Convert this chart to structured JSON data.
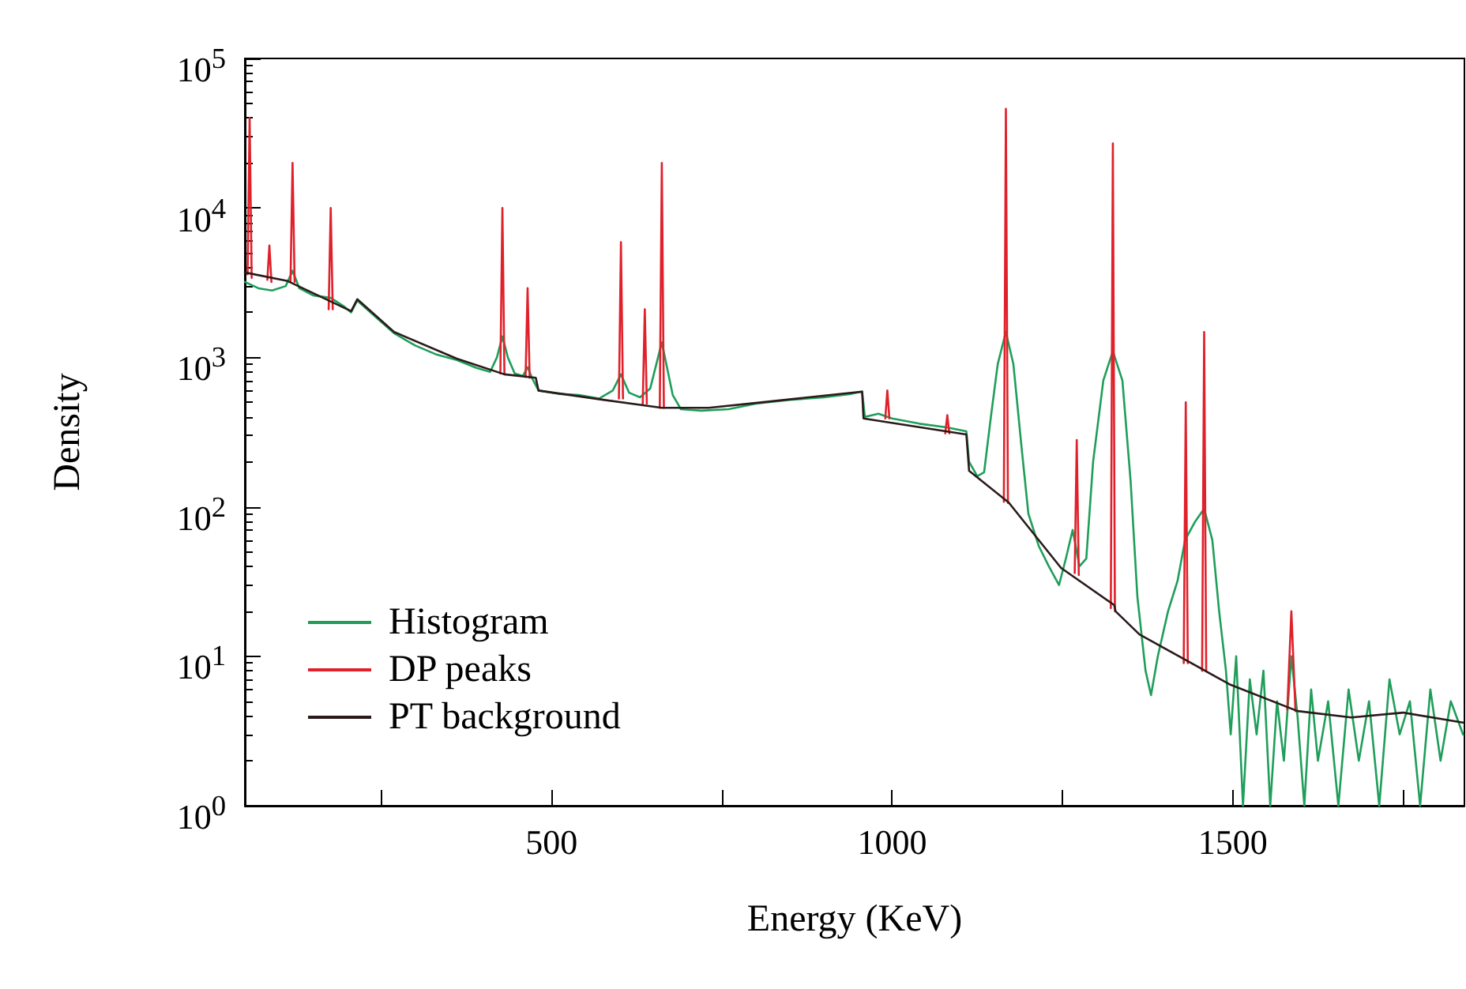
{
  "chart_data": {
    "type": "line",
    "xlabel": "Energy (KeV)",
    "ylabel": "Density",
    "log": "y",
    "xlim": [
      50,
      1840
    ],
    "ylim": [
      1,
      100000
    ],
    "xticks": [
      {
        "value": 250,
        "label": null
      },
      500,
      {
        "value": 750,
        "label": null
      },
      1000,
      {
        "value": 1250,
        "label": null
      },
      1500,
      {
        "value": 1750,
        "label": null
      }
    ],
    "yticks": [
      {
        "value": 1,
        "label": "10$^{0}$"
      },
      {
        "value": 10,
        "label": "10$^{1}$"
      },
      {
        "value": 100,
        "label": "10$^{2}$"
      },
      {
        "value": 1000,
        "label": "10$^{3}$"
      },
      {
        "value": 10000,
        "label": "10$^{4}$"
      },
      {
        "value": 100000,
        "label": "10$^{5}$"
      }
    ],
    "grid": false,
    "legend": "bottom left",
    "marker": "none",
    "line_style": "solid",
    "series": [
      {
        "name": "Histogram",
        "color": "#1f9e5a",
        "x": [
          50,
          70,
          90,
          110,
          120,
          130,
          150,
          176,
          195,
          206,
          215,
          240,
          269,
          300,
          330,
          361,
          390,
          410,
          420,
          428,
          436,
          446,
          458,
          465,
          472,
          481,
          510,
          540,
          570,
          590,
          602,
          614,
          630,
          645,
          662,
          678,
          690,
          720,
          760,
          800,
          850,
          900,
          940,
          956,
          960,
          980,
          1000,
          1040,
          1080,
          1109,
          1113,
          1125,
          1135,
          1145,
          1155,
          1167,
          1178,
          1190,
          1200,
          1215,
          1230,
          1245,
          1255,
          1265,
          1275,
          1285,
          1295,
          1310,
          1324,
          1338,
          1350,
          1360,
          1372,
          1380,
          1390,
          1405,
          1419,
          1430,
          1445,
          1458,
          1470,
          1480,
          1490,
          1497,
          1505,
          1515,
          1525,
          1535,
          1545,
          1555,
          1565,
          1575,
          1586,
          1595,
          1605,
          1615,
          1625,
          1640,
          1655,
          1670,
          1685,
          1700,
          1715,
          1730,
          1745,
          1760,
          1775,
          1790,
          1805,
          1820,
          1838
        ],
        "values": [
          3200,
          2900,
          2800,
          3000,
          3800,
          2900,
          2600,
          2500,
          2200,
          2000,
          2400,
          1900,
          1450,
          1200,
          1050,
          960,
          850,
          800,
          1000,
          1380,
          1000,
          780,
          750,
          860,
          720,
          600,
          570,
          560,
          530,
          600,
          770,
          580,
          540,
          620,
          1260,
          560,
          450,
          440,
          450,
          490,
          520,
          540,
          570,
          590,
          400,
          420,
          390,
          360,
          340,
          320,
          200,
          160,
          170,
          400,
          900,
          1480,
          900,
          250,
          90,
          55,
          40,
          30,
          45,
          70,
          40,
          45,
          200,
          700,
          1100,
          700,
          150,
          25,
          8,
          5.5,
          10,
          20,
          32,
          60,
          80,
          97,
          60,
          20,
          8,
          3,
          10,
          1,
          7,
          3,
          8,
          1,
          5,
          2,
          10,
          4,
          1,
          6,
          2,
          5,
          1,
          6,
          2,
          5,
          1,
          7,
          3,
          5,
          1,
          6,
          2,
          5,
          3
        ]
      },
      {
        "name": "DP peaks",
        "color": "#e0202a",
        "x": [
          54,
          57,
          60,
          null,
          83,
          86,
          89,
          null,
          117,
          120,
          123,
          null,
          173,
          176,
          179,
          null,
          425,
          428,
          431,
          null,
          462,
          465,
          468,
          null,
          599,
          602,
          605,
          null,
          634,
          637,
          640,
          null,
          659,
          662,
          665,
          null,
          990,
          993,
          996,
          null,
          1078,
          1081,
          1084,
          null,
          1164,
          1167,
          1170,
          null,
          1268,
          1271,
          1274,
          null,
          1321,
          1324,
          1327,
          null,
          1428,
          1431,
          1434,
          null,
          1455,
          1458,
          1461,
          null,
          1580,
          1586,
          1592
        ],
        "values": [
          3600,
          40000,
          3400,
          null,
          3300,
          5600,
          3200,
          null,
          3200,
          20000,
          3200,
          null,
          2100,
          10000,
          2100,
          null,
          780,
          10000,
          770,
          null,
          740,
          2900,
          730,
          null,
          530,
          5900,
          530,
          null,
          490,
          2100,
          490,
          null,
          460,
          20000,
          460,
          null,
          390,
          600,
          390,
          null,
          310,
          410,
          310,
          null,
          108,
          46000,
          106,
          null,
          36,
          280,
          35,
          null,
          21,
          27000,
          20,
          null,
          9,
          500,
          9,
          null,
          8,
          1480,
          8,
          null,
          4.4,
          20,
          4.3
        ]
      },
      {
        "name": "PT background",
        "color": "#2b1a1a",
        "x": [
          50,
          113,
          206,
          215,
          269,
          361,
          431,
          477,
          481,
          576,
          662,
          731,
          808,
          956,
          958,
          1109,
          1113,
          1171,
          1248,
          1326,
          1328,
          1363,
          1495,
          1595,
          1674,
          1750,
          1838
        ],
        "values": [
          3700,
          3240,
          2040,
          2450,
          1480,
          980,
          770,
          730,
          600,
          520,
          460,
          460,
          500,
          590,
          390,
          305,
          174,
          107,
          39,
          22,
          20,
          14,
          6.5,
          4.3,
          3.9,
          4.2,
          3.6
        ]
      }
    ]
  }
}
